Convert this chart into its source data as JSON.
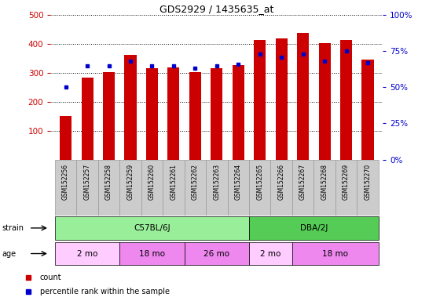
{
  "title": "GDS2929 / 1435635_at",
  "samples": [
    "GSM152256",
    "GSM152257",
    "GSM152258",
    "GSM152259",
    "GSM152260",
    "GSM152261",
    "GSM152262",
    "GSM152263",
    "GSM152264",
    "GSM152265",
    "GSM152266",
    "GSM152267",
    "GSM152268",
    "GSM152269",
    "GSM152270"
  ],
  "counts": [
    150,
    283,
    303,
    362,
    315,
    318,
    303,
    317,
    326,
    413,
    418,
    438,
    402,
    413,
    347
  ],
  "percentile_ranks": [
    50,
    65,
    65,
    68,
    65,
    65,
    63,
    65,
    66,
    73,
    71,
    73,
    68,
    75,
    67
  ],
  "ylim_left": [
    0,
    500
  ],
  "ylim_right": [
    0,
    100
  ],
  "yticks_left": [
    100,
    200,
    300,
    400,
    500
  ],
  "yticks_right": [
    0,
    25,
    50,
    75,
    100
  ],
  "bar_color": "#cc0000",
  "dot_color": "#0000cc",
  "left_tick_color": "#cc0000",
  "right_tick_color": "#0000cc",
  "grid_color": "#000000",
  "strain_groups": [
    {
      "label": "C57BL/6J",
      "start": 0,
      "end": 8,
      "color": "#99ee99"
    },
    {
      "label": "DBA/2J",
      "start": 9,
      "end": 14,
      "color": "#55cc55"
    }
  ],
  "age_groups": [
    {
      "label": "2 mo",
      "start": 0,
      "end": 2,
      "color": "#ffccff"
    },
    {
      "label": "18 mo",
      "start": 3,
      "end": 5,
      "color": "#ee88ee"
    },
    {
      "label": "26 mo",
      "start": 6,
      "end": 8,
      "color": "#ee88ee"
    },
    {
      "label": "2 mo",
      "start": 9,
      "end": 10,
      "color": "#ffccff"
    },
    {
      "label": "18 mo",
      "start": 11,
      "end": 14,
      "color": "#ee88ee"
    }
  ],
  "legend_items": [
    {
      "label": "count",
      "color": "#cc0000"
    },
    {
      "label": "percentile rank within the sample",
      "color": "#0000cc"
    }
  ],
  "fig_width": 5.6,
  "fig_height": 3.84,
  "dpi": 100
}
